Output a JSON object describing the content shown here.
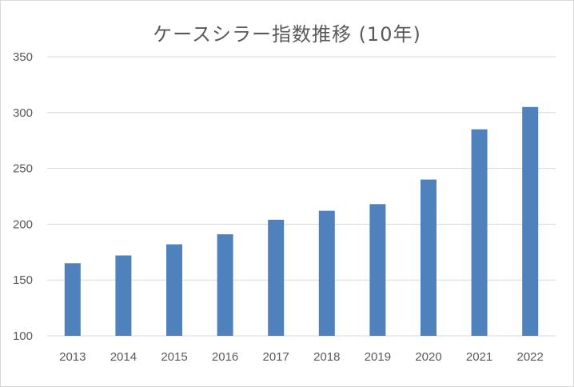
{
  "chart_data": {
    "type": "bar",
    "title": "ケースシラー指数推移 (10年)",
    "categories": [
      "2013",
      "2014",
      "2015",
      "2016",
      "2017",
      "2018",
      "2019",
      "2020",
      "2021",
      "2022"
    ],
    "series": [
      {
        "values": [
          165,
          172,
          182,
          191,
          204,
          212,
          218,
          240,
          285,
          305
        ]
      }
    ],
    "ylim": [
      100,
      350
    ],
    "yticks": [
      100,
      150,
      200,
      250,
      300,
      350
    ],
    "xlabel": "",
    "ylabel": "",
    "grid": true,
    "legend": "none",
    "colors": {
      "bar": "#4f81bd",
      "grid": "#d9d9d9",
      "text": "#595959"
    }
  }
}
